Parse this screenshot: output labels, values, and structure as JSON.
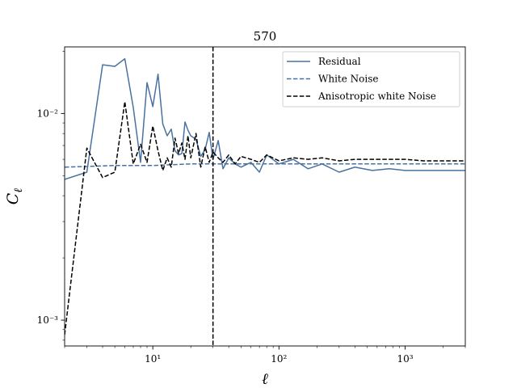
{
  "chart_data": {
    "type": "line",
    "title": "570",
    "xlabel": "ℓ",
    "ylabel": "C_ℓ",
    "xscale": "log",
    "yscale": "log",
    "xlim": [
      2,
      3000
    ],
    "ylim": [
      0.00075,
      0.021
    ],
    "x_ticks": [
      {
        "value": 10,
        "label": "10¹"
      },
      {
        "value": 100,
        "label": "10²"
      },
      {
        "value": 1000,
        "label": "10³"
      }
    ],
    "y_ticks": [
      {
        "value": 0.001,
        "label": "10⁻³"
      },
      {
        "value": 0.01,
        "label": "10⁻²"
      }
    ],
    "vline": {
      "x": 30,
      "style": "dashed",
      "color": "#000000"
    },
    "legend": {
      "position": "top-right",
      "entries": [
        "Residual",
        "White Noise",
        "Anisotropic white Noise"
      ]
    },
    "grid": false,
    "series": [
      {
        "name": "Residual",
        "color": "#4a72a0",
        "style": "solid",
        "x": [
          2,
          3,
          4,
          5,
          6,
          7,
          8,
          9,
          10,
          11,
          12,
          13,
          14,
          15,
          16,
          17,
          18,
          19,
          20,
          22,
          24,
          26,
          28,
          30,
          33,
          36,
          40,
          45,
          50,
          60,
          70,
          80,
          100,
          130,
          170,
          220,
          300,
          400,
          550,
          750,
          1000,
          1400,
          2000,
          3000
        ],
        "values": [
          0.0048,
          0.0052,
          0.0172,
          0.0169,
          0.0184,
          0.0107,
          0.0058,
          0.0141,
          0.0108,
          0.0155,
          0.0089,
          0.0078,
          0.0084,
          0.0066,
          0.0063,
          0.0064,
          0.0091,
          0.0083,
          0.0078,
          0.0075,
          0.0062,
          0.0067,
          0.0081,
          0.006,
          0.0074,
          0.0054,
          0.0061,
          0.0057,
          0.0055,
          0.0058,
          0.0052,
          0.0063,
          0.0057,
          0.006,
          0.0054,
          0.0057,
          0.0052,
          0.0055,
          0.0053,
          0.0054,
          0.0053,
          0.0053,
          0.0053,
          0.0053
        ]
      },
      {
        "name": "White Noise",
        "color": "#4a72a0",
        "style": "dashed",
        "x": [
          2,
          5,
          10,
          20,
          40,
          100,
          300,
          1000,
          3000
        ],
        "values": [
          0.0055,
          0.0056,
          0.0056,
          0.0057,
          0.0057,
          0.0057,
          0.0057,
          0.0057,
          0.0057
        ]
      },
      {
        "name": "Anisotropic white Noise",
        "color": "#000000",
        "style": "dashed",
        "x": [
          2,
          3,
          4,
          5,
          6,
          7,
          8,
          9,
          10,
          11,
          12,
          13,
          14,
          15,
          16,
          17,
          18,
          19,
          20,
          22,
          24,
          26,
          28,
          30,
          33,
          36,
          40,
          45,
          50,
          60,
          70,
          80,
          100,
          130,
          170,
          220,
          300,
          400,
          550,
          750,
          1000,
          1400,
          2000,
          3000
        ],
        "values": [
          0.00085,
          0.0068,
          0.0049,
          0.0052,
          0.0114,
          0.0057,
          0.0071,
          0.0058,
          0.0087,
          0.0066,
          0.0053,
          0.0061,
          0.0055,
          0.0076,
          0.0064,
          0.0072,
          0.006,
          0.0078,
          0.0061,
          0.008,
          0.0055,
          0.0069,
          0.0058,
          0.0065,
          0.0061,
          0.0058,
          0.0063,
          0.0057,
          0.0062,
          0.006,
          0.0058,
          0.0063,
          0.0059,
          0.0061,
          0.006,
          0.0061,
          0.0059,
          0.006,
          0.006,
          0.006,
          0.006,
          0.0059,
          0.0059,
          0.0059
        ]
      }
    ]
  }
}
